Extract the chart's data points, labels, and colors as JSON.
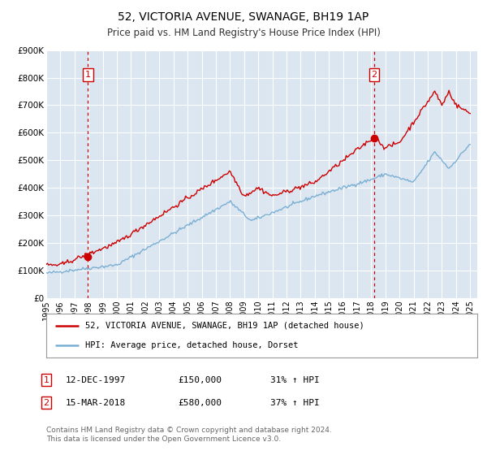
{
  "title": "52, VICTORIA AVENUE, SWANAGE, BH19 1AP",
  "subtitle": "Price paid vs. HM Land Registry's House Price Index (HPI)",
  "background_color": "#ffffff",
  "plot_bg_color": "#dce6f1",
  "grid_color": "#ffffff",
  "xmin": 1995.0,
  "xmax": 2025.5,
  "ymin": 0,
  "ymax": 900000,
  "yticks": [
    0,
    100000,
    200000,
    300000,
    400000,
    500000,
    600000,
    700000,
    800000,
    900000
  ],
  "ytick_labels": [
    "£0",
    "£100K",
    "£200K",
    "£300K",
    "£400K",
    "£500K",
    "£600K",
    "£700K",
    "£800K",
    "£900K"
  ],
  "xtick_years": [
    1995,
    1996,
    1997,
    1998,
    1999,
    2000,
    2001,
    2002,
    2003,
    2004,
    2005,
    2006,
    2007,
    2008,
    2009,
    2010,
    2011,
    2012,
    2013,
    2014,
    2015,
    2016,
    2017,
    2018,
    2019,
    2020,
    2021,
    2022,
    2023,
    2024,
    2025
  ],
  "sale1_x": 1997.95,
  "sale1_y": 150000,
  "sale1_label": "1",
  "sale1_date": "12-DEC-1997",
  "sale1_price": "£150,000",
  "sale1_hpi": "31% ↑ HPI",
  "sale2_x": 2018.21,
  "sale2_y": 580000,
  "sale2_label": "2",
  "sale2_date": "15-MAR-2018",
  "sale2_price": "£580,000",
  "sale2_hpi": "37% ↑ HPI",
  "legend_line1": "52, VICTORIA AVENUE, SWANAGE, BH19 1AP (detached house)",
  "legend_line2": "HPI: Average price, detached house, Dorset",
  "footer": "Contains HM Land Registry data © Crown copyright and database right 2024.\nThis data is licensed under the Open Government Licence v3.0.",
  "red_line_color": "#cc0000",
  "blue_line_color": "#7aafd4",
  "sale_marker_color": "#cc0000",
  "vline_color": "#cc0000"
}
